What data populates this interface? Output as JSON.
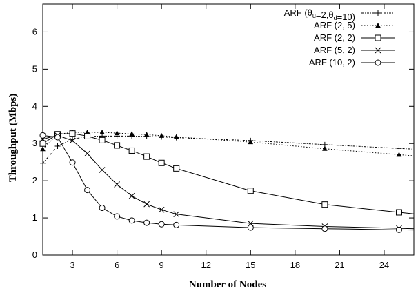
{
  "chart_data": {
    "type": "line",
    "xlabel": "Number of Nodes",
    "ylabel": "Throughput (Mbps)",
    "xlim": [
      1,
      26
    ],
    "ylim": [
      0,
      6.75
    ],
    "xticks": [
      3,
      6,
      9,
      12,
      15,
      18,
      21,
      24
    ],
    "yticks": [
      0,
      1,
      2,
      3,
      4,
      5,
      6
    ],
    "grid": false,
    "legend_position": "top-right",
    "series": [
      {
        "name": "ARF (θu=2,θd=10)",
        "legend_parts": {
          "prefix": "ARF (θ",
          "sub1": "u",
          "middle": "=2,θ",
          "sub2": "d",
          "suffix": "=10)"
        },
        "marker": "plus",
        "dash": "dotted-dash",
        "x": [
          1,
          2,
          3,
          4,
          5,
          6,
          7,
          8,
          9,
          10,
          15,
          20,
          25
        ],
        "y": [
          2.47,
          2.93,
          3.12,
          3.19,
          3.2,
          3.2,
          3.2,
          3.19,
          3.18,
          3.16,
          3.08,
          2.97,
          2.87
        ]
      },
      {
        "name": "ARF (2, 5)",
        "marker": "triangle",
        "dash": "dotted",
        "x": [
          1,
          2,
          3,
          4,
          5,
          6,
          7,
          8,
          9,
          10,
          15,
          20,
          25
        ],
        "y": [
          2.85,
          3.25,
          3.3,
          3.3,
          3.3,
          3.28,
          3.26,
          3.24,
          3.21,
          3.18,
          3.04,
          2.86,
          2.7
        ]
      },
      {
        "name": "ARF (2, 2)",
        "marker": "square",
        "dash": "solid",
        "x": [
          1,
          2,
          3,
          4,
          5,
          6,
          7,
          8,
          9,
          10,
          15,
          20,
          25
        ],
        "y": [
          3.0,
          3.25,
          3.27,
          3.2,
          3.09,
          2.95,
          2.81,
          2.65,
          2.48,
          2.33,
          1.73,
          1.36,
          1.15
        ]
      },
      {
        "name": "ARF (5, 2)",
        "marker": "cross",
        "dash": "solid",
        "x": [
          1,
          2,
          3,
          4,
          5,
          6,
          7,
          8,
          9,
          10,
          15,
          20,
          25
        ],
        "y": [
          3.12,
          3.22,
          3.08,
          2.73,
          2.29,
          1.9,
          1.59,
          1.37,
          1.22,
          1.1,
          0.85,
          0.77,
          0.72
        ]
      },
      {
        "name": "ARF (10, 2)",
        "marker": "circle",
        "dash": "solid",
        "x": [
          1,
          2,
          3,
          4,
          5,
          6,
          7,
          8,
          9,
          10,
          15,
          20,
          25
        ],
        "y": [
          3.22,
          3.17,
          2.49,
          1.75,
          1.27,
          1.04,
          0.93,
          0.87,
          0.83,
          0.81,
          0.74,
          0.71,
          0.68
        ]
      }
    ]
  }
}
